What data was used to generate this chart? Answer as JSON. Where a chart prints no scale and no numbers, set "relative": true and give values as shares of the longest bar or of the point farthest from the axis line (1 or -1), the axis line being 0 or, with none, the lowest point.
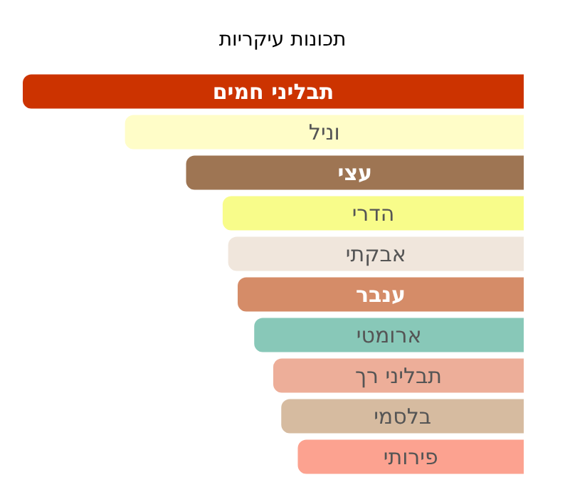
{
  "chart_data": {
    "type": "bar",
    "orientation": "horizontal",
    "relative": true,
    "title": "תכונות עיקריות",
    "categories": [
      "תבליני חמים",
      "וניל",
      "עצי",
      "הדרי",
      "אבקתי",
      "ענבר",
      "ארומטי",
      "תבליני רך",
      "בלסמי",
      "פירותי"
    ],
    "values": [
      1,
      0.796,
      0.674,
      0.601,
      0.59,
      0.571,
      0.538,
      0.5,
      0.484,
      0.451
    ],
    "colors": [
      "#cc3300",
      "#fffdc8",
      "#9e7553",
      "#f8fc8a",
      "#f0e6dc",
      "#d58c68",
      "#88c8b8",
      "#edae99",
      "#d6bba0",
      "#fca290"
    ]
  }
}
